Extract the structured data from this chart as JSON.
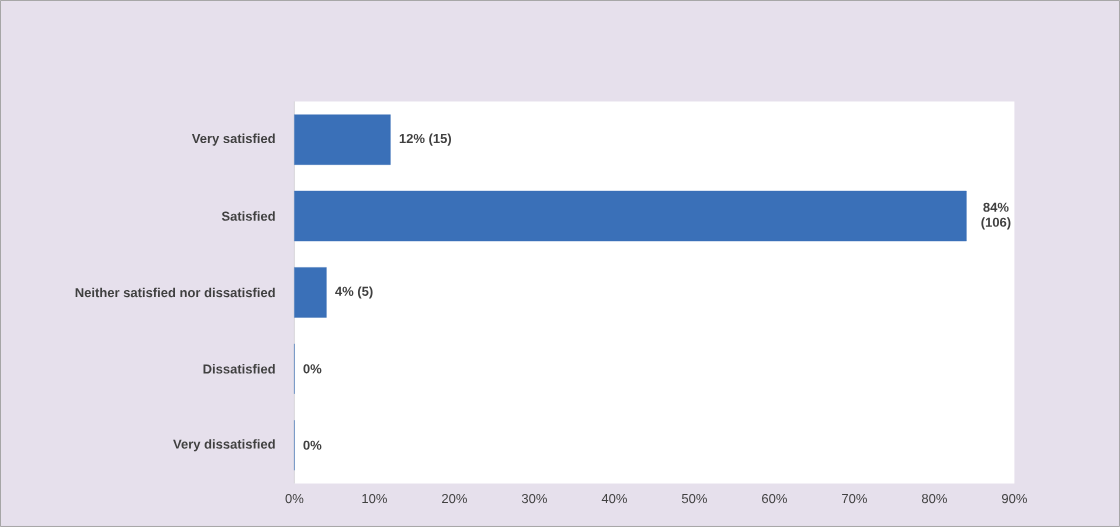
{
  "chart_data": {
    "type": "bar",
    "orientation": "horizontal",
    "categories": [
      "Very satisfied",
      "Satisfied",
      "Neither satisfied nor dissatisfied",
      "Dissatisfied",
      "Very dissatisfied"
    ],
    "values": [
      12,
      84,
      4,
      0,
      0
    ],
    "value_labels": [
      "12% (15)",
      "84% (106)",
      "4% (5)",
      "0%",
      "0%"
    ],
    "color": "#3a70b8",
    "xlim": [
      0,
      90
    ],
    "xticks": [
      {
        "value": 0,
        "label": "0%"
      },
      {
        "value": 10,
        "label": "10%"
      },
      {
        "value": 20,
        "label": "20%"
      },
      {
        "value": 30,
        "label": "30%"
      },
      {
        "value": 40,
        "label": "40%"
      },
      {
        "value": 50,
        "label": "50%"
      },
      {
        "value": 60,
        "label": "60%"
      },
      {
        "value": 70,
        "label": "70%"
      },
      {
        "value": 80,
        "label": "80%"
      },
      {
        "value": 90,
        "label": "90%"
      }
    ],
    "grid": false
  }
}
